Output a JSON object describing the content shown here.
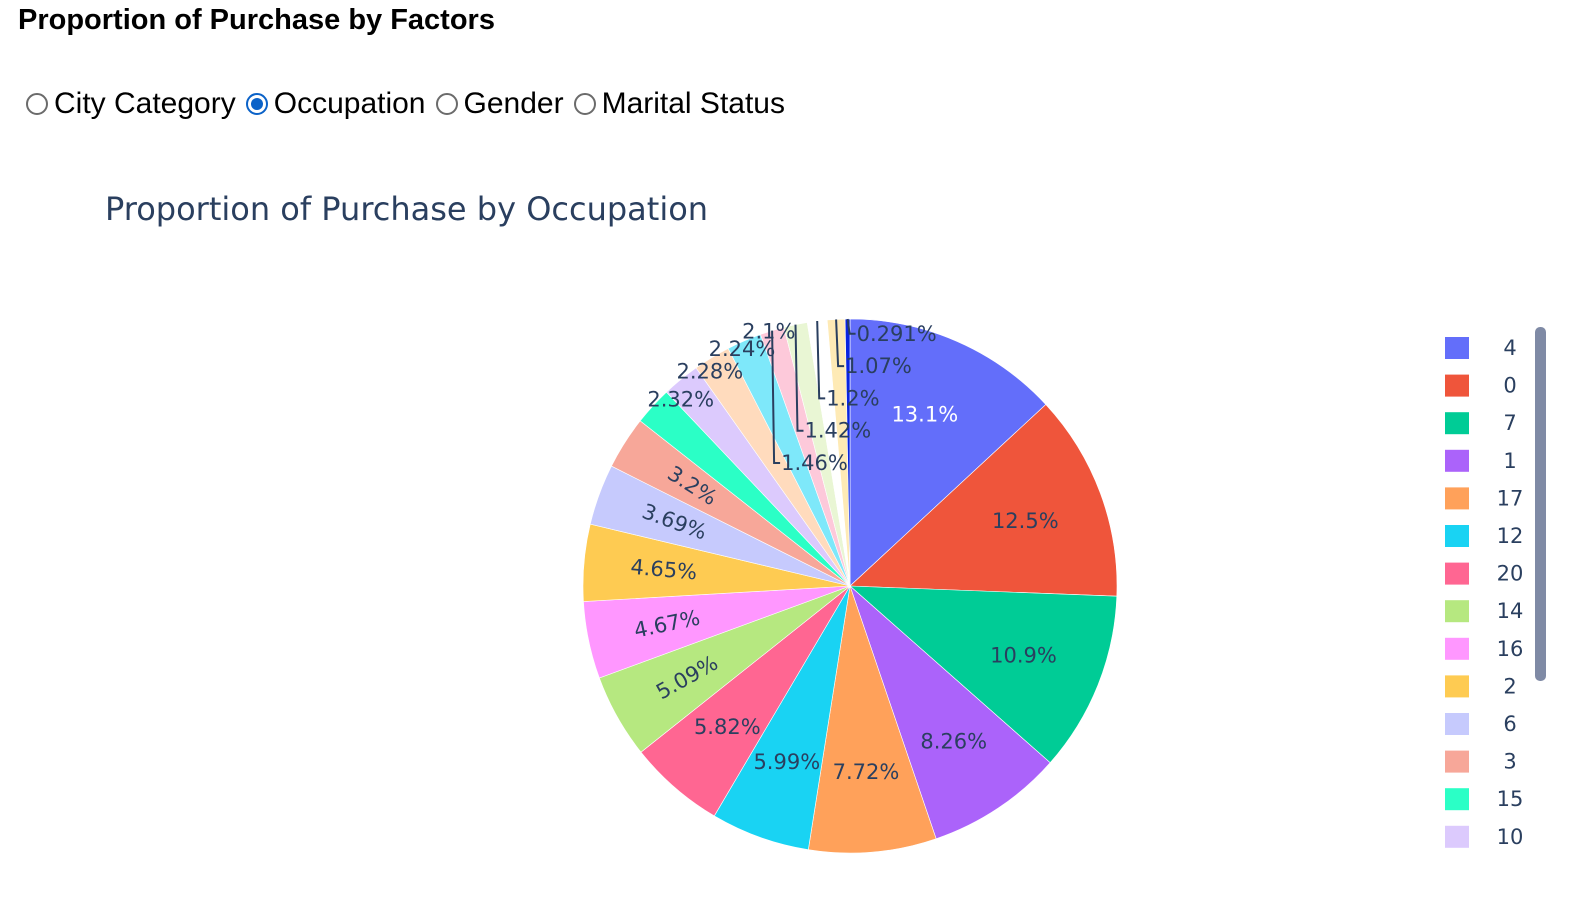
{
  "page": {
    "heading": "Proportion of Purchase by Factors",
    "radio_options": [
      {
        "label": "City Category",
        "checked": false
      },
      {
        "label": "Occupation",
        "checked": true
      },
      {
        "label": "Gender",
        "checked": false
      },
      {
        "label": "Marital Status",
        "checked": false
      }
    ]
  },
  "colors": {
    "label_dark": "#2a3f5f",
    "label_light": "#ffffff",
    "scrollbar": "#7f8aa5",
    "radio_accent": "#0b62c8"
  },
  "chart_data": {
    "type": "pie",
    "title": "Proportion of Purchase by Occupation",
    "legend_position": "right",
    "start_angle_deg": 90,
    "direction": "clockwise",
    "sort": "descending",
    "slices": [
      {
        "label": "4",
        "value": 13.1,
        "text": "13.1%",
        "color": "#636efa",
        "text_color": "#ffffff",
        "inside": true
      },
      {
        "label": "0",
        "value": 12.5,
        "text": "12.5%",
        "color": "#ef553b",
        "text_color": "#2a3f5f",
        "inside": true
      },
      {
        "label": "7",
        "value": 10.9,
        "text": "10.9%",
        "color": "#00cc96",
        "text_color": "#2a3f5f",
        "inside": true
      },
      {
        "label": "1",
        "value": 8.26,
        "text": "8.26%",
        "color": "#ab63fa",
        "text_color": "#2a3f5f",
        "inside": true
      },
      {
        "label": "17",
        "value": 7.72,
        "text": "7.72%",
        "color": "#ffa15a",
        "text_color": "#2a3f5f",
        "inside": true
      },
      {
        "label": "12",
        "value": 5.99,
        "text": "5.99%",
        "color": "#19d3f3",
        "text_color": "#2a3f5f",
        "inside": true
      },
      {
        "label": "20",
        "value": 5.82,
        "text": "5.82%",
        "color": "#ff6692",
        "text_color": "#2a3f5f",
        "inside": true
      },
      {
        "label": "14",
        "value": 5.09,
        "text": "5.09%",
        "color": "#b6e880",
        "text_color": "#2a3f5f",
        "inside": true
      },
      {
        "label": "16",
        "value": 4.67,
        "text": "4.67%",
        "color": "#ff97ff",
        "text_color": "#2a3f5f",
        "inside": true
      },
      {
        "label": "2",
        "value": 4.65,
        "text": "4.65%",
        "color": "#fecb52",
        "text_color": "#2a3f5f",
        "inside": true
      },
      {
        "label": "6",
        "value": 3.69,
        "text": "3.69%",
        "color": "#c6cafd",
        "text_color": "#2a3f5f",
        "inside": true
      },
      {
        "label": "3",
        "value": 3.2,
        "text": "3.2%",
        "color": "#f7a799",
        "text_color": "#2a3f5f",
        "inside": true
      },
      {
        "label": "15",
        "value": 2.32,
        "text": "2.32%",
        "color": "#2bffc6",
        "text_color": "#2a3f5f",
        "inside": false
      },
      {
        "label": "10",
        "value": 2.28,
        "text": "2.28%",
        "color": "#dccafd",
        "text_color": "#2a3f5f",
        "inside": false
      },
      {
        "label": "",
        "value": 2.24,
        "text": "2.24%",
        "color": "#ffdbbd",
        "text_color": "#2a3f5f",
        "inside": false
      },
      {
        "label": "",
        "value": 2.1,
        "text": "2.1%",
        "color": "#7ee8fa",
        "text_color": "#2a3f5f",
        "inside": false
      },
      {
        "label": "",
        "value": 1.46,
        "text": "1.46%",
        "color": "#fdc9da",
        "text_color": "#2a3f5f",
        "inside": false
      },
      {
        "label": "",
        "value": 1.42,
        "text": "1.42%",
        "color": "#e9f6d4",
        "text_color": "#2a3f5f",
        "inside": false
      },
      {
        "label": "",
        "value": 1.2,
        "text": "1.2%",
        "color": "#ffffff",
        "text_color": "#2a3f5f",
        "inside": false
      },
      {
        "label": "",
        "value": 1.07,
        "text": "1.07%",
        "color": "#feeab5",
        "text_color": "#2a3f5f",
        "inside": false
      },
      {
        "label": "",
        "value": 0.291,
        "text": "0.291%",
        "color": "#0a24e0",
        "text_color": "#2a3f5f",
        "inside": false
      }
    ],
    "legend_visible": [
      "4",
      "0",
      "7",
      "1",
      "17",
      "12",
      "20",
      "14",
      "16",
      "2",
      "6",
      "3",
      "15",
      "10"
    ]
  }
}
